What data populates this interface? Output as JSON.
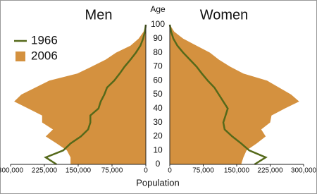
{
  "chart_data": {
    "type": "pyramid",
    "left_title": "Men",
    "right_title": "Women",
    "y_label": "Age",
    "x_label": "Population",
    "ylim": [
      0,
      100
    ],
    "yticks": [
      0,
      10,
      20,
      30,
      40,
      50,
      60,
      70,
      80,
      90,
      100
    ],
    "xlim": [
      0,
      300000
    ],
    "xticks": [
      0,
      {
        "value": 75000,
        "label": "75,000"
      },
      {
        "value": 150000,
        "label": "150,000"
      },
      {
        "value": 225000,
        "label": "225,000"
      },
      {
        "value": 300000,
        "label": "300,000"
      }
    ],
    "ages": [
      0,
      5,
      10,
      15,
      20,
      25,
      30,
      35,
      40,
      45,
      50,
      55,
      60,
      65,
      70,
      75,
      80,
      85,
      90,
      95,
      100
    ],
    "series": [
      {
        "name": "1966",
        "color": "#55691a",
        "style": "line",
        "men": [
          198000,
          222000,
          183000,
          167000,
          144000,
          128000,
          123000,
          123000,
          105000,
          100000,
          92000,
          86000,
          70000,
          58000,
          47000,
          34000,
          22000,
          12000,
          6000,
          2000,
          0
        ],
        "women": [
          190000,
          215000,
          178000,
          160000,
          140000,
          123000,
          120000,
          125000,
          130000,
          120000,
          110000,
          100000,
          85000,
          72000,
          60000,
          45000,
          30000,
          17000,
          8000,
          3000,
          0
        ]
      },
      {
        "name": "2006",
        "color": "#d4913f",
        "style": "area",
        "men": [
          167000,
          167000,
          175000,
          198000,
          222000,
          206000,
          230000,
          230000,
          261000,
          292000,
          276000,
          245000,
          214000,
          152000,
          120000,
          89000,
          66000,
          34000,
          16000,
          5000,
          0
        ],
        "women": [
          160000,
          165000,
          172000,
          195000,
          215000,
          205000,
          225000,
          228000,
          258000,
          290000,
          272000,
          245000,
          218000,
          165000,
          135000,
          110000,
          90000,
          60000,
          30000,
          10000,
          0
        ]
      }
    ]
  }
}
